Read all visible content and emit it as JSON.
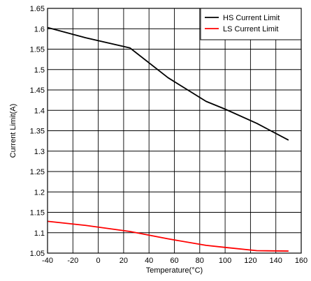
{
  "chart_data": {
    "type": "line",
    "xlabel": "Temperature(°C)",
    "ylabel": "Current Limit(A)",
    "xlim": [
      -40,
      160
    ],
    "ylim": [
      1.05,
      1.65
    ],
    "x_ticks": [
      "-40",
      "-20",
      "0",
      "20",
      "40",
      "60",
      "80",
      "100",
      "120",
      "140",
      "160"
    ],
    "y_ticks": [
      "1.05",
      "1.1",
      "1.15",
      "1.2",
      "1.25",
      "1.3",
      "1.35",
      "1.4",
      "1.45",
      "1.5",
      "1.55",
      "1.6",
      "1.65"
    ],
    "grid": true,
    "legend_position": "top-right",
    "series": [
      {
        "name": "HS Current Limit",
        "color": "#000000",
        "x": [
          -40,
          -10,
          25,
          55,
          85,
          100,
          125,
          150
        ],
        "y": [
          1.603,
          1.578,
          1.553,
          1.48,
          1.422,
          1.403,
          1.368,
          1.327
        ]
      },
      {
        "name": "LS Current Limit",
        "color": "#ff0000",
        "x": [
          -40,
          -10,
          25,
          55,
          85,
          100,
          125,
          150
        ],
        "y": [
          1.128,
          1.118,
          1.103,
          1.085,
          1.069,
          1.064,
          1.056,
          1.055
        ]
      }
    ]
  }
}
